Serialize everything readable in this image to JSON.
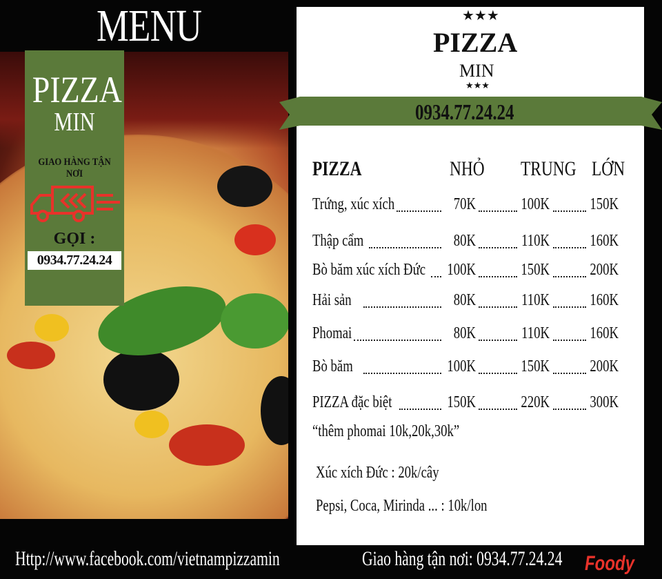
{
  "header": {
    "title": "MENU"
  },
  "promo_box": {
    "brand": "PIZZA",
    "brand_sub": "MIN",
    "delivery": "GIAO HÀNG TẬN NƠI",
    "call_label": "GỌI :",
    "phone": "0934.77.24.24",
    "bg_color": "#5b7a3a",
    "icon": "delivery-truck-icon",
    "icon_color": "#e8322a"
  },
  "panel": {
    "brand": "PIZZA",
    "brand_sub": "MIN",
    "stars": "★★★",
    "phone": "0934.77.24.24",
    "ribbon_color": "#5b7a3a",
    "columns": [
      "PIZZA",
      "NHỎ",
      "TRUNG",
      "LỚN"
    ],
    "rows": [
      {
        "name": "Trứng, xúc xích",
        "small": "70K",
        "medium": "100K",
        "large": "150K"
      },
      {
        "name": "Thập cẩm",
        "small": "80K",
        "medium": "110K",
        "large": "160K"
      },
      {
        "name": "Bò băm xúc xích Đức",
        "small": "100K",
        "medium": "150K",
        "large": "200K"
      },
      {
        "name": "Hải sản",
        "small": "80K",
        "medium": "110K",
        "large": "160K"
      },
      {
        "name": "Phomai",
        "small": "80K",
        "medium": "110K",
        "large": "160K"
      },
      {
        "name": "Bò băm",
        "small": "100K",
        "medium": "150K",
        "large": "200K"
      },
      {
        "name": "PIZZA đặc biệt",
        "small": "150K",
        "medium": "220K",
        "large": "300K"
      }
    ],
    "note": "“thêm phomai 10k,20k,30k”",
    "extras": [
      "Xúc xích Đức : 20k/cây",
      "Pepsi, Coca, Mirinda ... : 10k/lon"
    ]
  },
  "footer": {
    "facebook": "Http://www.facebook.com/vietnampizzamin",
    "delivery": "Giao hàng tận nơi: 0934.77.24.24"
  },
  "watermark": {
    "logo": "Foody.vn"
  }
}
